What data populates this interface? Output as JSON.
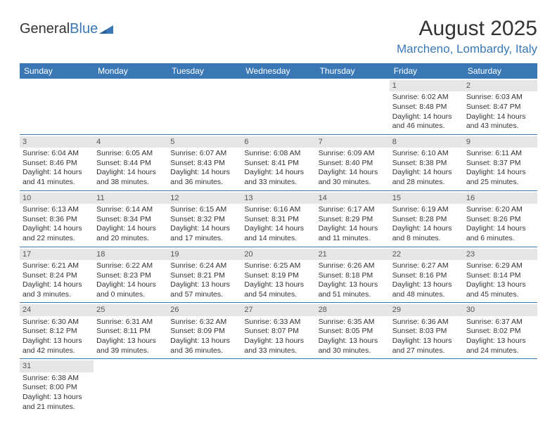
{
  "logo": {
    "part1": "General",
    "part2": "Blue"
  },
  "title": "August 2025",
  "location": "Marcheno, Lombardy, Italy",
  "colors": {
    "header_bg": "#3a78b5",
    "header_text": "#ffffff",
    "daynum_bg": "#e6e6e6",
    "border": "#3a78b5",
    "text": "#333333",
    "accent": "#3a78b5"
  },
  "weekdays": [
    "Sunday",
    "Monday",
    "Tuesday",
    "Wednesday",
    "Thursday",
    "Friday",
    "Saturday"
  ],
  "weeks": [
    [
      null,
      null,
      null,
      null,
      null,
      {
        "d": "1",
        "sr": "Sunrise: 6:02 AM",
        "ss": "Sunset: 8:48 PM",
        "dl": "Daylight: 14 hours and 46 minutes."
      },
      {
        "d": "2",
        "sr": "Sunrise: 6:03 AM",
        "ss": "Sunset: 8:47 PM",
        "dl": "Daylight: 14 hours and 43 minutes."
      }
    ],
    [
      {
        "d": "3",
        "sr": "Sunrise: 6:04 AM",
        "ss": "Sunset: 8:46 PM",
        "dl": "Daylight: 14 hours and 41 minutes."
      },
      {
        "d": "4",
        "sr": "Sunrise: 6:05 AM",
        "ss": "Sunset: 8:44 PM",
        "dl": "Daylight: 14 hours and 38 minutes."
      },
      {
        "d": "5",
        "sr": "Sunrise: 6:07 AM",
        "ss": "Sunset: 8:43 PM",
        "dl": "Daylight: 14 hours and 36 minutes."
      },
      {
        "d": "6",
        "sr": "Sunrise: 6:08 AM",
        "ss": "Sunset: 8:41 PM",
        "dl": "Daylight: 14 hours and 33 minutes."
      },
      {
        "d": "7",
        "sr": "Sunrise: 6:09 AM",
        "ss": "Sunset: 8:40 PM",
        "dl": "Daylight: 14 hours and 30 minutes."
      },
      {
        "d": "8",
        "sr": "Sunrise: 6:10 AM",
        "ss": "Sunset: 8:38 PM",
        "dl": "Daylight: 14 hours and 28 minutes."
      },
      {
        "d": "9",
        "sr": "Sunrise: 6:11 AM",
        "ss": "Sunset: 8:37 PM",
        "dl": "Daylight: 14 hours and 25 minutes."
      }
    ],
    [
      {
        "d": "10",
        "sr": "Sunrise: 6:13 AM",
        "ss": "Sunset: 8:36 PM",
        "dl": "Daylight: 14 hours and 22 minutes."
      },
      {
        "d": "11",
        "sr": "Sunrise: 6:14 AM",
        "ss": "Sunset: 8:34 PM",
        "dl": "Daylight: 14 hours and 20 minutes."
      },
      {
        "d": "12",
        "sr": "Sunrise: 6:15 AM",
        "ss": "Sunset: 8:32 PM",
        "dl": "Daylight: 14 hours and 17 minutes."
      },
      {
        "d": "13",
        "sr": "Sunrise: 6:16 AM",
        "ss": "Sunset: 8:31 PM",
        "dl": "Daylight: 14 hours and 14 minutes."
      },
      {
        "d": "14",
        "sr": "Sunrise: 6:17 AM",
        "ss": "Sunset: 8:29 PM",
        "dl": "Daylight: 14 hours and 11 minutes."
      },
      {
        "d": "15",
        "sr": "Sunrise: 6:19 AM",
        "ss": "Sunset: 8:28 PM",
        "dl": "Daylight: 14 hours and 8 minutes."
      },
      {
        "d": "16",
        "sr": "Sunrise: 6:20 AM",
        "ss": "Sunset: 8:26 PM",
        "dl": "Daylight: 14 hours and 6 minutes."
      }
    ],
    [
      {
        "d": "17",
        "sr": "Sunrise: 6:21 AM",
        "ss": "Sunset: 8:24 PM",
        "dl": "Daylight: 14 hours and 3 minutes."
      },
      {
        "d": "18",
        "sr": "Sunrise: 6:22 AM",
        "ss": "Sunset: 8:23 PM",
        "dl": "Daylight: 14 hours and 0 minutes."
      },
      {
        "d": "19",
        "sr": "Sunrise: 6:24 AM",
        "ss": "Sunset: 8:21 PM",
        "dl": "Daylight: 13 hours and 57 minutes."
      },
      {
        "d": "20",
        "sr": "Sunrise: 6:25 AM",
        "ss": "Sunset: 8:19 PM",
        "dl": "Daylight: 13 hours and 54 minutes."
      },
      {
        "d": "21",
        "sr": "Sunrise: 6:26 AM",
        "ss": "Sunset: 8:18 PM",
        "dl": "Daylight: 13 hours and 51 minutes."
      },
      {
        "d": "22",
        "sr": "Sunrise: 6:27 AM",
        "ss": "Sunset: 8:16 PM",
        "dl": "Daylight: 13 hours and 48 minutes."
      },
      {
        "d": "23",
        "sr": "Sunrise: 6:29 AM",
        "ss": "Sunset: 8:14 PM",
        "dl": "Daylight: 13 hours and 45 minutes."
      }
    ],
    [
      {
        "d": "24",
        "sr": "Sunrise: 6:30 AM",
        "ss": "Sunset: 8:12 PM",
        "dl": "Daylight: 13 hours and 42 minutes."
      },
      {
        "d": "25",
        "sr": "Sunrise: 6:31 AM",
        "ss": "Sunset: 8:11 PM",
        "dl": "Daylight: 13 hours and 39 minutes."
      },
      {
        "d": "26",
        "sr": "Sunrise: 6:32 AM",
        "ss": "Sunset: 8:09 PM",
        "dl": "Daylight: 13 hours and 36 minutes."
      },
      {
        "d": "27",
        "sr": "Sunrise: 6:33 AM",
        "ss": "Sunset: 8:07 PM",
        "dl": "Daylight: 13 hours and 33 minutes."
      },
      {
        "d": "28",
        "sr": "Sunrise: 6:35 AM",
        "ss": "Sunset: 8:05 PM",
        "dl": "Daylight: 13 hours and 30 minutes."
      },
      {
        "d": "29",
        "sr": "Sunrise: 6:36 AM",
        "ss": "Sunset: 8:03 PM",
        "dl": "Daylight: 13 hours and 27 minutes."
      },
      {
        "d": "30",
        "sr": "Sunrise: 6:37 AM",
        "ss": "Sunset: 8:02 PM",
        "dl": "Daylight: 13 hours and 24 minutes."
      }
    ],
    [
      {
        "d": "31",
        "sr": "Sunrise: 6:38 AM",
        "ss": "Sunset: 8:00 PM",
        "dl": "Daylight: 13 hours and 21 minutes."
      },
      null,
      null,
      null,
      null,
      null,
      null
    ]
  ]
}
